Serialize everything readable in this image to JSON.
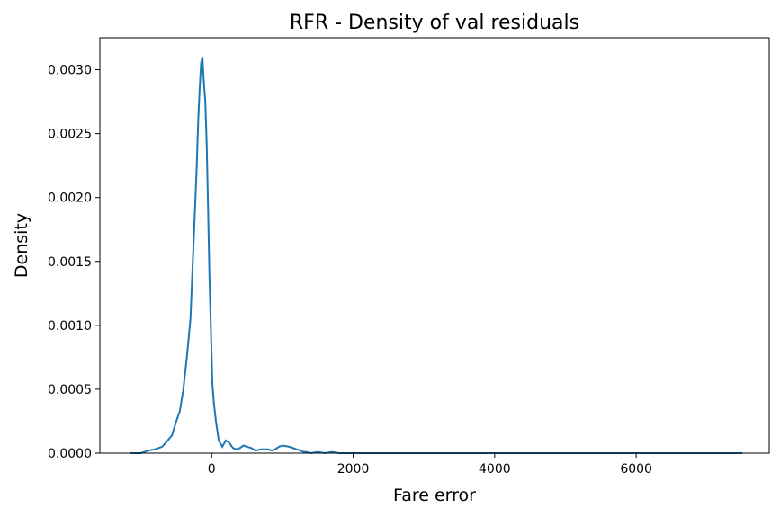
{
  "chart_data": {
    "type": "line",
    "title": "RFR - Density of val residuals",
    "xlabel": "Fare error",
    "ylabel": "Density",
    "xlim": [
      -1580,
      7880
    ],
    "ylim": [
      0,
      0.00325
    ],
    "xticks": [
      0,
      2000,
      4000,
      6000
    ],
    "xtick_labels": [
      "0",
      "2000",
      "4000",
      "6000"
    ],
    "yticks": [
      0,
      0.0005,
      0.001,
      0.0015,
      0.002,
      0.0025,
      0.003
    ],
    "ytick_labels": [
      "0.0000",
      "0.0005",
      "0.0010",
      "0.0015",
      "0.0020",
      "0.0025",
      "0.0030"
    ],
    "grid": false,
    "series": [
      {
        "color": "#1f77b4",
        "x": [
          -1150,
          -1000,
          -900,
          -800,
          -700,
          -620,
          -560,
          -500,
          -450,
          -400,
          -350,
          -300,
          -270,
          -240,
          -210,
          -190,
          -170,
          -150,
          -130,
          -110,
          -90,
          -70,
          -50,
          -30,
          -10,
          10,
          30,
          60,
          100,
          150,
          200,
          250,
          300,
          350,
          400,
          450,
          500,
          560,
          620,
          700,
          800,
          850,
          900,
          950,
          1000,
          1100,
          1200,
          1260,
          1300,
          1340,
          1400,
          1500,
          1600,
          1700,
          1800,
          1900,
          2000,
          2100,
          2300,
          2500,
          3000,
          4000,
          5000,
          6000,
          7000,
          7300,
          7500
        ],
        "y": [
          0,
          0,
          2e-05,
          3e-05,
          5e-05,
          0.0001,
          0.00014,
          0.00025,
          0.00033,
          0.0005,
          0.00075,
          0.00105,
          0.00145,
          0.00185,
          0.00225,
          0.0026,
          0.00285,
          0.00305,
          0.0031,
          0.0029,
          0.00275,
          0.0024,
          0.0019,
          0.00135,
          0.00095,
          0.00055,
          0.0004,
          0.00025,
          0.0001,
          5e-05,
          0.0001,
          8e-05,
          4e-05,
          3e-05,
          4e-05,
          6e-05,
          5e-05,
          4e-05,
          2e-05,
          3e-05,
          3e-05,
          2e-05,
          3e-05,
          5e-05,
          6e-05,
          5e-05,
          3e-05,
          2e-05,
          1e-05,
          1e-05,
          0,
          1e-05,
          0,
          1e-05,
          0,
          0,
          0,
          0,
          0,
          0,
          0,
          0,
          0,
          0,
          0,
          0,
          0
        ]
      }
    ]
  }
}
